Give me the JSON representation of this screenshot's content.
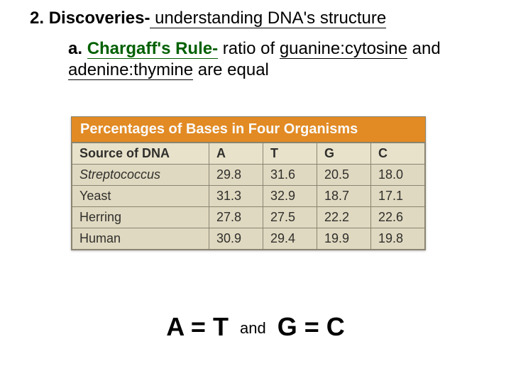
{
  "heading2": {
    "number": "2.",
    "title": "Discoveries-",
    "rest": " understanding DNA's structure"
  },
  "heading2a": {
    "letter": "a.",
    "ruleName": "Chargaff's Rule-",
    "part1": " ratio of ",
    "pair1": "guanine:cytosine",
    "part2": " and ",
    "pair2": "adenine:thymine",
    "part3": " are equal"
  },
  "table": {
    "title": "Percentages of Bases in Four Organisms",
    "columns": [
      "Source of DNA",
      "A",
      "T",
      "G",
      "C"
    ],
    "rows": [
      {
        "src": "Streptococcus",
        "italic": true,
        "A": "29.8",
        "T": "31.6",
        "G": "20.5",
        "C": "18.0"
      },
      {
        "src": "Yeast",
        "italic": false,
        "A": "31.3",
        "T": "32.9",
        "G": "18.7",
        "C": "17.1"
      },
      {
        "src": "Herring",
        "italic": false,
        "A": "27.8",
        "T": "27.5",
        "G": "22.2",
        "C": "22.6"
      },
      {
        "src": "Human",
        "italic": false,
        "A": "30.9",
        "T": "29.4",
        "G": "19.9",
        "C": "19.8"
      }
    ],
    "styling": {
      "header_bg": "#e68a1f",
      "header_text_color": "#ffffff",
      "cell_bg": "#e4ddc4",
      "col_header_bg": "#ede6ce",
      "border_color": "#8a8470",
      "title_fontsize": 20,
      "cell_fontsize": 18
    }
  },
  "equation": {
    "left": "A = T",
    "connector": "and",
    "right": "G = C"
  }
}
